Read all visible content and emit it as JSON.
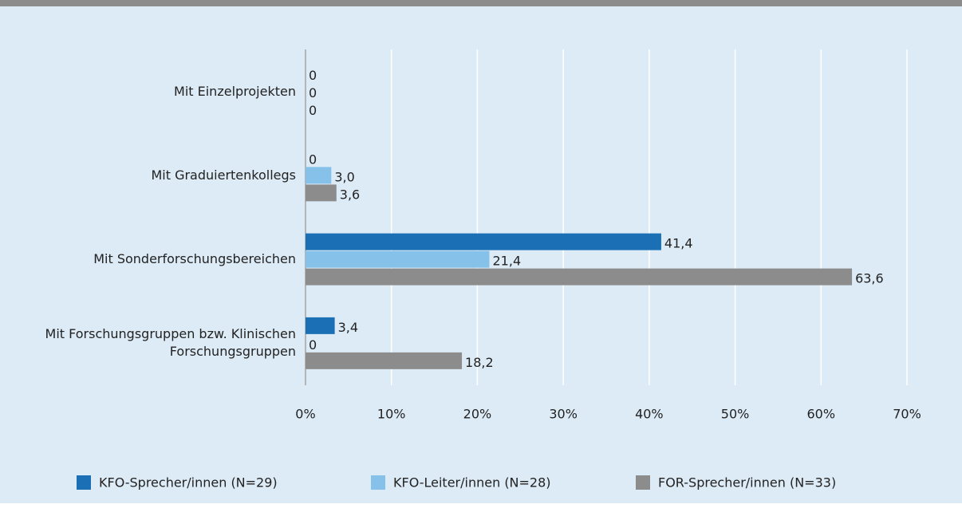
{
  "chart_data": {
    "type": "bar",
    "orientation": "horizontal",
    "categories": [
      "Mit Einzelprojekten",
      "Mit Graduiertenkollegs",
      "Mit Sonderforschungsbereichen",
      "Mit Forschungsgruppen bzw. Klinischen Forschungsgruppen"
    ],
    "series": [
      {
        "name": "KFO-Sprecher/innen (N=29)",
        "color": "#1a6fb5",
        "values": [
          0,
          0,
          41.4,
          3.4
        ],
        "value_labels": [
          "0",
          "0",
          "41,4",
          "3,4"
        ]
      },
      {
        "name": "KFO-Leiter/innen (N=28)",
        "color": "#85c1e9",
        "values": [
          0,
          3.0,
          21.4,
          0
        ],
        "value_labels": [
          "0",
          "3,0",
          "21,4",
          "0"
        ]
      },
      {
        "name": "FOR-Sprecher/innen (N=33)",
        "color": "#8c8c8c",
        "values": [
          0,
          3.6,
          63.6,
          18.2
        ],
        "value_labels": [
          "0",
          "3,6",
          "63,6",
          "18,2"
        ]
      }
    ],
    "xlim": [
      0,
      70
    ],
    "xticks": [
      {
        "value": 0,
        "label": "0%"
      },
      {
        "value": 10,
        "label": "10%"
      },
      {
        "value": 20,
        "label": "20%"
      },
      {
        "value": 30,
        "label": "30%"
      },
      {
        "value": 40,
        "label": "40%"
      },
      {
        "value": 50,
        "label": "50%"
      },
      {
        "value": 60,
        "label": "60%"
      },
      {
        "value": 70,
        "label": "70%"
      }
    ],
    "grid": true,
    "legend": "bottom"
  }
}
